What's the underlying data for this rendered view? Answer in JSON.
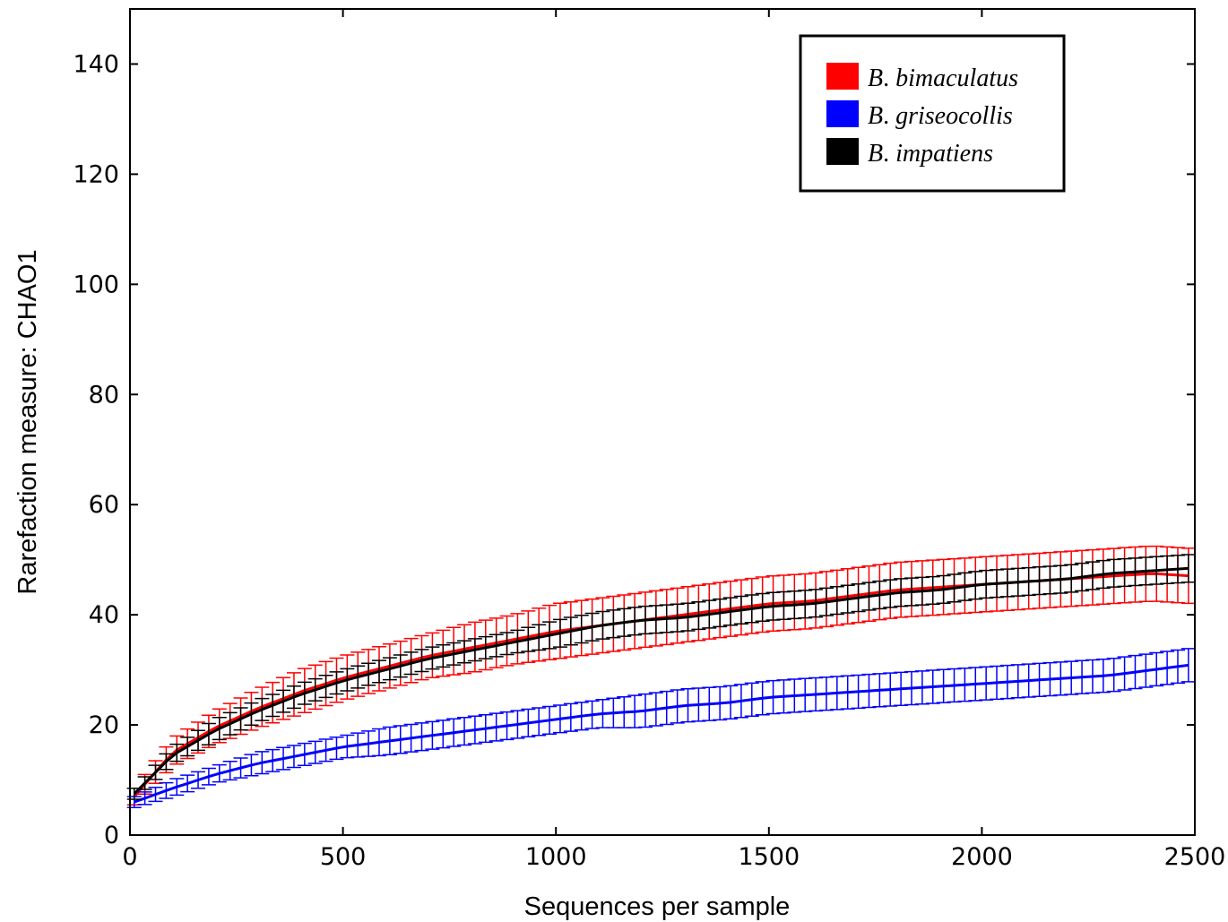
{
  "chart_data": {
    "type": "line",
    "xlabel": "Sequences per sample",
    "ylabel": "Rarefaction measure: CHAO1",
    "xlim": [
      0,
      2500
    ],
    "ylim": [
      0,
      150
    ],
    "xticks": [
      "0",
      "500",
      "1000",
      "1500",
      "2000",
      "2500"
    ],
    "yticks": [
      "0",
      "20",
      "40",
      "60",
      "80",
      "100",
      "120",
      "140"
    ],
    "legend_position": "top-right",
    "grid": false,
    "error_bars": true,
    "series": [
      {
        "name": "B. bimaculatus",
        "name_prefix": "B",
        "name_suffix": "bimaculatus",
        "color": "#ff0000",
        "x": [
          10,
          100,
          200,
          300,
          400,
          500,
          600,
          700,
          800,
          900,
          1000,
          1100,
          1200,
          1300,
          1400,
          1500,
          1600,
          1700,
          1800,
          1900,
          2000,
          2100,
          2200,
          2300,
          2400,
          2500
        ],
        "y": [
          7,
          15,
          19.5,
          23,
          26,
          28.5,
          30.5,
          32.5,
          34,
          35.5,
          37,
          38,
          39,
          40,
          41,
          42,
          42.5,
          43.5,
          44.5,
          45,
          45.5,
          46,
          46.5,
          47,
          47.5,
          47
        ],
        "err": [
          1.5,
          2.5,
          3,
          3.5,
          4,
          4,
          4,
          4,
          4.5,
          4.5,
          5,
          5,
          5,
          5,
          5,
          5,
          5,
          5,
          5,
          5,
          5,
          5,
          5,
          5,
          5,
          5
        ]
      },
      {
        "name": "B. griseocollis",
        "name_prefix": "B",
        "name_suffix": "griseocollis",
        "color": "#0000ff",
        "x": [
          10,
          100,
          200,
          300,
          400,
          500,
          600,
          700,
          800,
          900,
          1000,
          1100,
          1200,
          1300,
          1400,
          1500,
          1600,
          1700,
          1800,
          1900,
          2000,
          2100,
          2200,
          2300,
          2400,
          2500
        ],
        "y": [
          6,
          8.5,
          11,
          13,
          14.5,
          16,
          17,
          18,
          19,
          20,
          21,
          22,
          22.5,
          23.5,
          24,
          25,
          25.5,
          26,
          26.5,
          27,
          27.5,
          28,
          28.5,
          29,
          30,
          31
        ],
        "err": [
          1,
          1.5,
          1.5,
          2,
          2,
          2,
          2.5,
          2.5,
          2.5,
          2.5,
          2.5,
          2.5,
          3,
          3,
          3,
          3,
          3,
          3,
          3,
          3,
          3,
          3,
          3,
          3,
          3,
          3
        ]
      },
      {
        "name": "B. impatiens",
        "name_prefix": "B",
        "name_suffix": "impatiens",
        "color": "#000000",
        "x": [
          10,
          100,
          200,
          300,
          400,
          500,
          600,
          700,
          800,
          900,
          1000,
          1100,
          1200,
          1300,
          1400,
          1500,
          1600,
          1700,
          1800,
          1900,
          2000,
          2100,
          2200,
          2300,
          2400,
          2500
        ],
        "y": [
          7.5,
          14.5,
          19,
          22.5,
          25.5,
          28,
          30,
          32,
          33.5,
          35,
          36.5,
          38,
          39,
          39.5,
          40.5,
          41.5,
          42,
          43,
          44,
          44.5,
          45.5,
          46,
          46.5,
          47.5,
          48,
          48.5
        ],
        "err": [
          1,
          1.5,
          2,
          2,
          2,
          2,
          2,
          2,
          2,
          2,
          2.5,
          2.5,
          2.5,
          2.5,
          2.5,
          2.5,
          2.5,
          2.5,
          2.5,
          2.5,
          2.5,
          2.5,
          2.5,
          2.5,
          2.5,
          2.5
        ]
      }
    ]
  }
}
